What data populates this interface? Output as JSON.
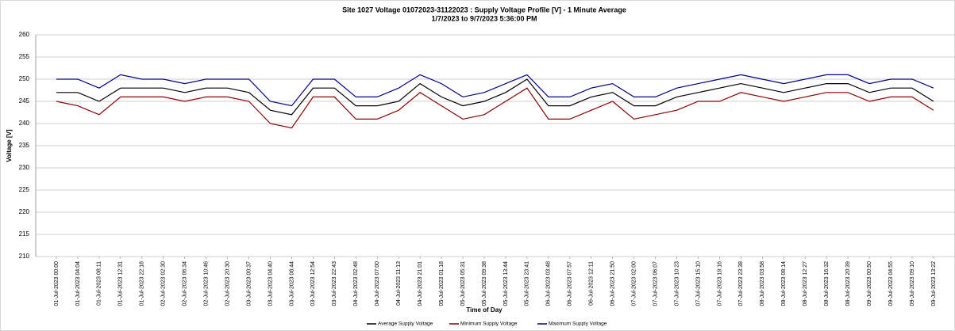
{
  "chart_data": {
    "type": "line",
    "title": "Site 1027 Voltage 01072023-31122023 : Supply Voltage Profile [V] - 1 Minute Average",
    "subtitle": "1/7/2023 to 9/7/2023 5:36:00 PM",
    "x_label": "Time of Day",
    "y_label": "Voltage [V]",
    "categories": [
      "01-Jul-2023 00:00",
      "01-Jul-2023 04:04",
      "01-Jul-2023 08:11",
      "01-Jul-2023 12:31",
      "01-Jul-2023 22:18",
      "02-Jul-2023 02:30",
      "02-Jul-2023 06:34",
      "02-Jul-2023 10:46",
      "02-Jul-2023 20:30",
      "03-Jul-2023 00:37",
      "03-Jul-2023 04:40",
      "03-Jul-2023 08:44",
      "03-Jul-2023 12:54",
      "03-Jul-2023 22:43",
      "04-Jul-2023 02:48",
      "04-Jul-2023 07:00",
      "04-Jul-2023 11:13",
      "04-Jul-2023 21:01",
      "05-Jul-2023 01:18",
      "05-Jul-2023 05:31",
      "05-Jul-2023 09:38",
      "05-Jul-2023 13:44",
      "05-Jul-2023 23:41",
      "06-Jul-2023 03:48",
      "06-Jul-2023 07:57",
      "06-Jul-2023 12:11",
      "06-Jul-2023 21:50",
      "07-Jul-2023 02:00",
      "07-Jul-2023 06:07",
      "07-Jul-2023 10:23",
      "07-Jul-2023 15:10",
      "07-Jul-2023 19:16",
      "07-Jul-2023 23:38",
      "08-Jul-2023 03:58",
      "08-Jul-2023 08:14",
      "08-Jul-2023 12:27",
      "08-Jul-2023 16:32",
      "08-Jul-2023 20:39",
      "09-Jul-2023 00:50",
      "09-Jul-2023 04:55",
      "09-Jul-2023 09:10",
      "09-Jul-2023 13:22"
    ],
    "series": [
      {
        "name": "Maximum Supply Voltage",
        "color": "#00008b",
        "values": [
          250,
          250,
          248,
          251,
          250,
          250,
          249,
          250,
          250,
          250,
          245,
          244,
          250,
          250,
          246,
          246,
          248,
          251,
          249,
          246,
          247,
          249,
          251,
          246,
          246,
          248,
          249,
          246,
          246,
          248,
          249,
          250,
          251,
          250,
          249,
          250,
          251,
          251,
          249,
          250,
          250,
          248
        ]
      },
      {
        "name": "Minimum Supply Voltage",
        "color": "#8b0000",
        "values": [
          245,
          244,
          242,
          246,
          246,
          246,
          245,
          246,
          246,
          245,
          240,
          239,
          246,
          246,
          241,
          241,
          243,
          247,
          244,
          241,
          242,
          245,
          248,
          241,
          241,
          243,
          245,
          241,
          242,
          243,
          245,
          245,
          247,
          246,
          245,
          246,
          247,
          247,
          245,
          246,
          246,
          243
        ]
      },
      {
        "name": "Average Supply Voltage",
        "color": "#000000",
        "values": [
          247,
          247,
          245,
          248,
          248,
          248,
          247,
          248,
          248,
          247,
          243,
          242,
          248,
          248,
          244,
          244,
          245,
          249,
          246,
          244,
          245,
          247,
          250,
          244,
          244,
          246,
          247,
          244,
          244,
          246,
          247,
          248,
          249,
          248,
          247,
          248,
          249,
          249,
          247,
          248,
          248,
          245
        ]
      }
    ],
    "ylim": [
      210,
      260
    ],
    "yticks": [
      210,
      215,
      220,
      225,
      230,
      235,
      240,
      245,
      250,
      255,
      260
    ],
    "grid": true
  }
}
